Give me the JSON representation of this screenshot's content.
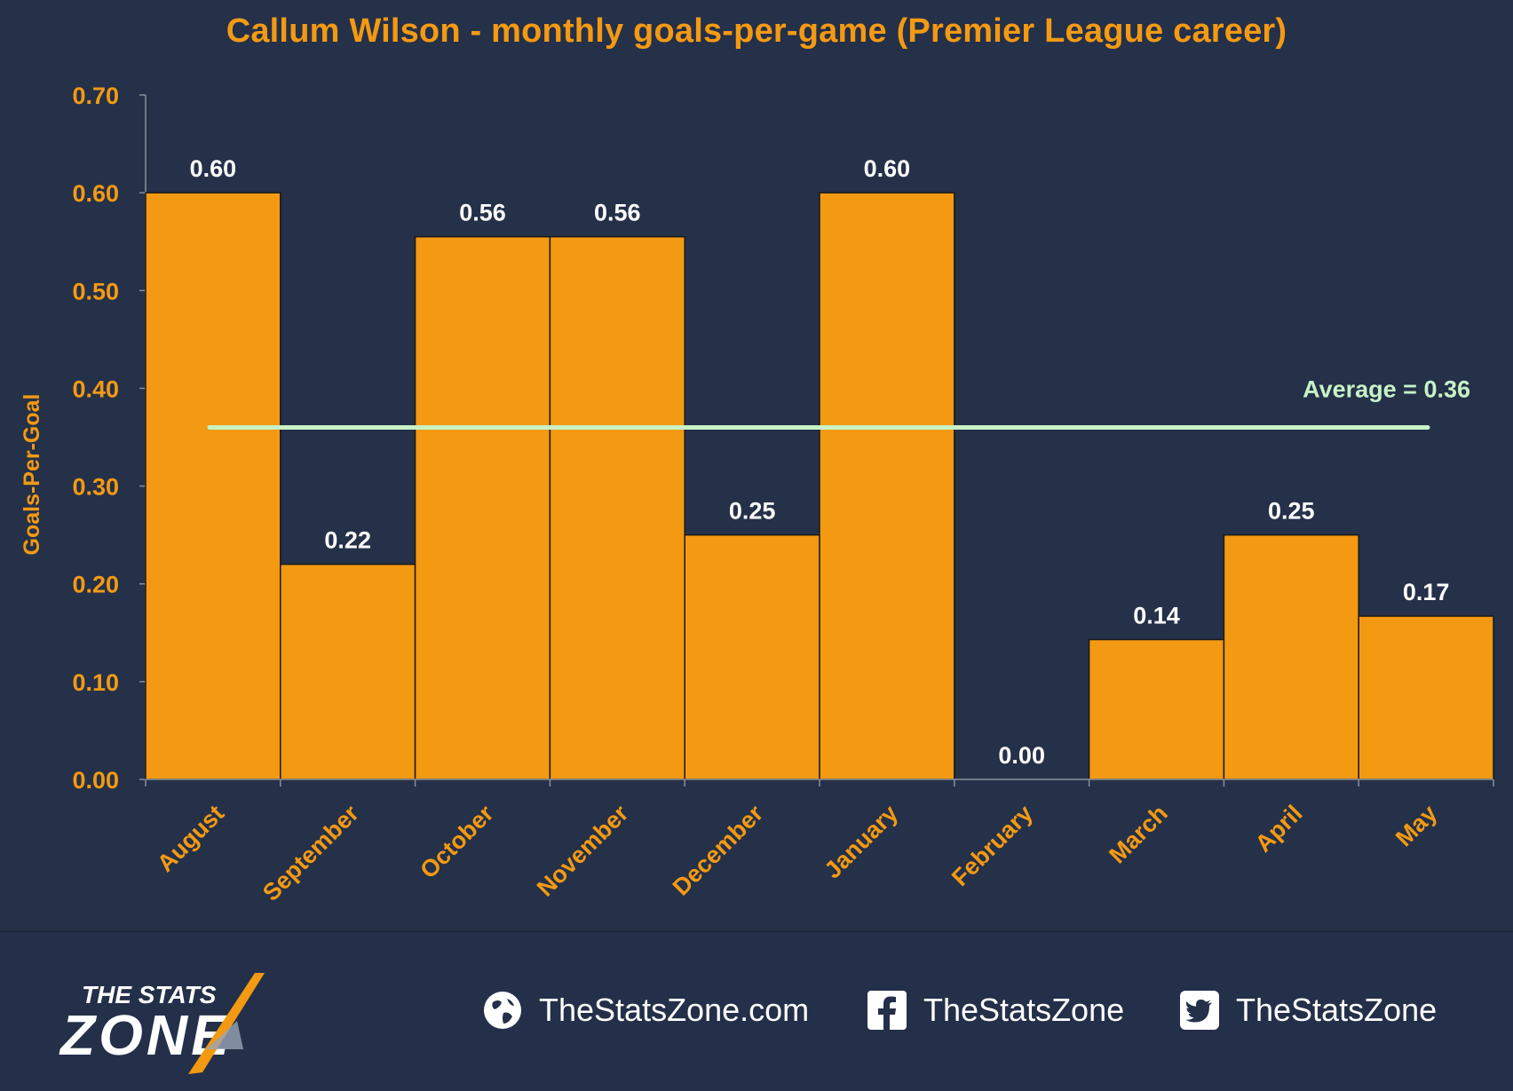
{
  "chart_data": {
    "type": "bar",
    "title": "Callum Wilson - monthly goals-per-game (Premier League career)",
    "ylabel": "Goals-Per-Goal",
    "xlabel": "",
    "categories": [
      "August",
      "September",
      "October",
      "November",
      "December",
      "January",
      "February",
      "March",
      "April",
      "May"
    ],
    "values": [
      0.6,
      0.22,
      0.555,
      0.555,
      0.25,
      0.6,
      0.0,
      0.143,
      0.25,
      0.167
    ],
    "data_labels": [
      "0.60",
      "0.22",
      "0.56",
      "0.56",
      "0.25",
      "0.60",
      "0.00",
      "0.14",
      "0.25",
      "0.17"
    ],
    "ylim": [
      0,
      0.7
    ],
    "y_ticks": [
      "0.00",
      "0.10",
      "0.20",
      "0.30",
      "0.40",
      "0.50",
      "0.60",
      "0.70"
    ],
    "average": 0.36,
    "average_label": "Average = 0.36",
    "grid": false,
    "colors": {
      "bar": "#f39a12",
      "bar_edge": "#1a1a1a",
      "average_line": "#c8f2c6",
      "axis_text": "#f39a12",
      "label_text": "#ffffff",
      "background": "#253049"
    }
  },
  "footer": {
    "logo_line1": "THE STATS",
    "logo_line2": "ZONE",
    "website": "TheStatsZone.com",
    "facebook": "TheStatsZone",
    "twitter": "TheStatsZone",
    "icons": [
      "globe-icon",
      "facebook-icon",
      "twitter-icon"
    ]
  }
}
